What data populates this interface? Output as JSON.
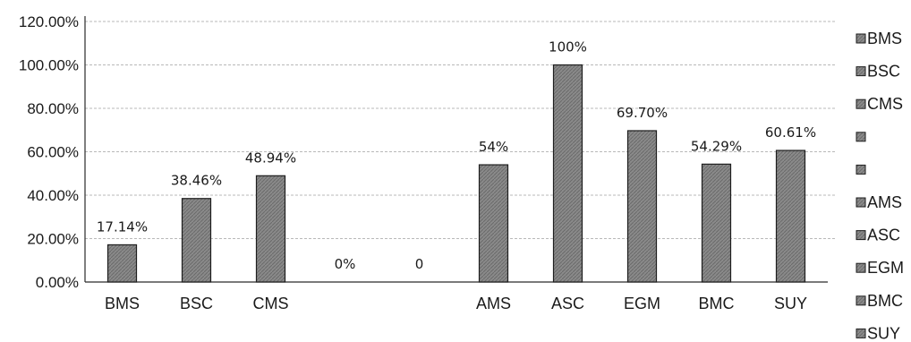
{
  "chart_data": {
    "type": "bar",
    "categories": [
      "BMS",
      "BSC",
      "CMS",
      "",
      "",
      "AMS",
      "ASC",
      "EGM",
      "BMC",
      "SUY"
    ],
    "values": [
      17.14,
      38.46,
      48.94,
      0,
      0,
      54,
      100,
      69.7,
      54.29,
      60.61
    ],
    "data_labels": [
      "17.14%",
      "38.46%",
      "48.94%",
      "0%",
      "0",
      "54%",
      "100%",
      "69.70%",
      "54.29%",
      "60.61%"
    ],
    "ylim": [
      0,
      120
    ],
    "yticks": [
      0,
      20,
      40,
      60,
      80,
      100,
      120
    ],
    "ytick_labels": [
      "0.00%",
      "20.00%",
      "40.00%",
      "60.00%",
      "80.00%",
      "100.00%",
      "120.00%"
    ],
    "title": "",
    "xlabel": "",
    "ylabel": "",
    "grid": "horizontal dashed",
    "legend": {
      "placement": "right",
      "entries": [
        "BMS",
        "BSC",
        "CMS",
        "",
        "",
        "AMS",
        "ASC",
        "EGM",
        "BMC",
        "SUY"
      ]
    },
    "colors": {
      "bar_fill": "#8a8a8a",
      "bar_stroke": "#1e1e1e",
      "grid": "#b8b8b8",
      "axis": "#2a2a2a"
    }
  }
}
